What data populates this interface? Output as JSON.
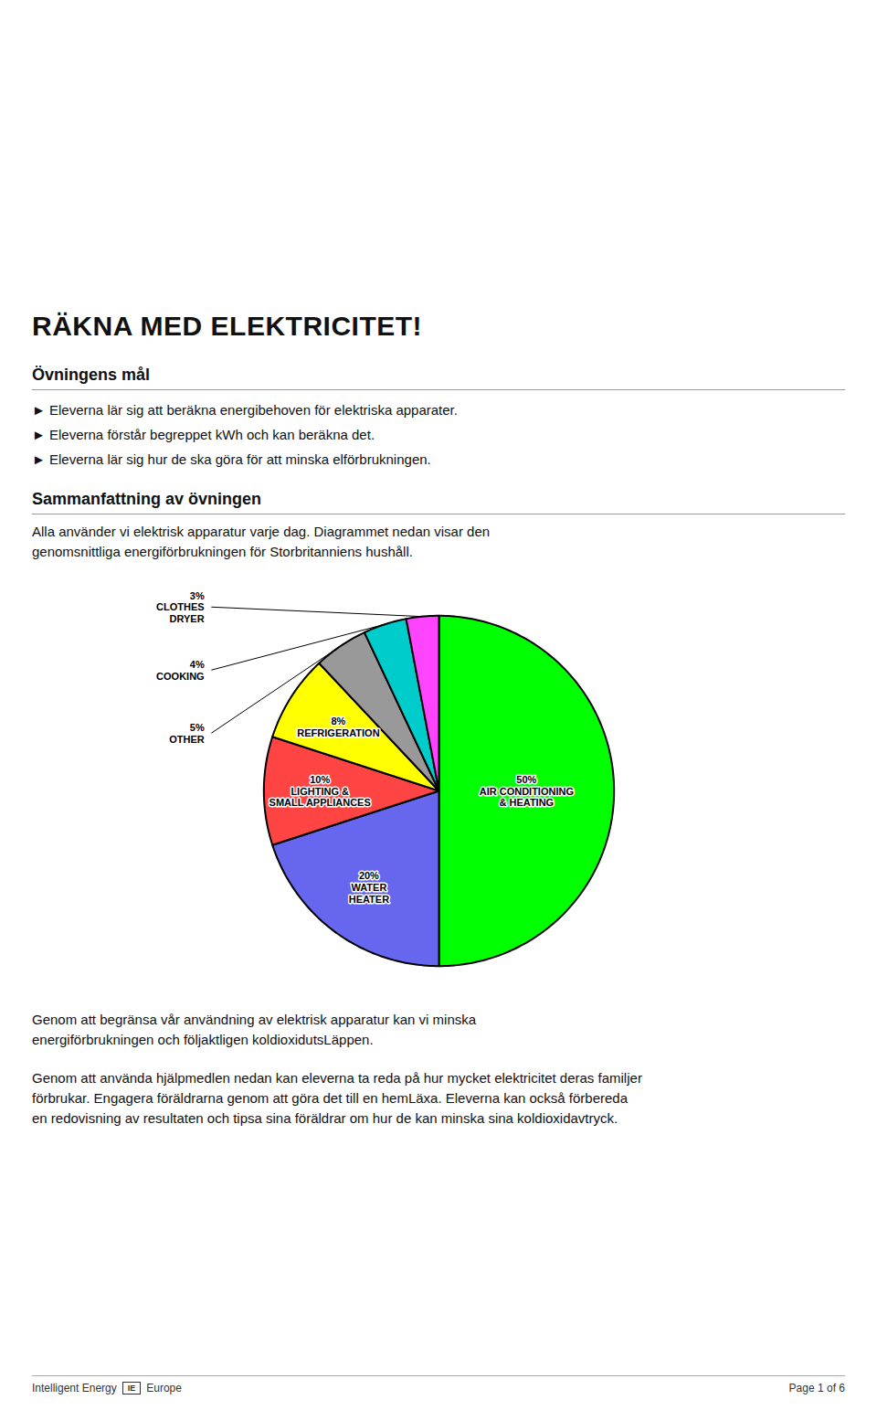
{
  "chart_data": {
    "type": "pie",
    "title": "RÄKNA MED ELEKTRICITET!",
    "categories": [
      "AIR CONDITIONING\n& HEATING",
      "WATER\nHEATER",
      "LIGHTING &\nSMALL APPLIANCES",
      "REFRIGERATION",
      "OTHER",
      "COOKING",
      "CLOTHES\nDRYER"
    ],
    "values": [
      50,
      20,
      10,
      8,
      5,
      4,
      3
    ],
    "value_labels": [
      "50%",
      "20%",
      "10%",
      "8%",
      "5%",
      "4%",
      "3%"
    ],
    "colors": [
      "#00ff00",
      "#6666ee",
      "#ff4444",
      "#ffff00",
      "#999999",
      "#00cccc",
      "#ff44ff"
    ],
    "data_labels": true,
    "annotations": [
      "Övningens mål",
      "► Eleverna lär sig att beräkna energibehoven för elektriska apparater.",
      "► Eleverna förstår begreppet kWh och kan beräkna det.",
      "► Eleverna lär sig hur de ska göra för att minska elförbrukningen.",
      "Sammanfattning av övningen",
      "Alla använder vi elektrisk apparatur varje dag. Diagrammet nedan visar den",
      "genomsnittliga energiförbrukningen för Storbritanniens hushåll.",
      "Genom att begränsa vår användning av elektrisk apparatur kan vi minska",
      "energiförbrukningen och följaktligen koldioxidutsLäppen.",
      "Genom att använda hjälpmedlen nedan kan eleverna ta reda på hur mycket elektricitet deras familjer",
      "förbrukar. Engagera föräldrarna genom att göra det till en hemLäxa. Eleverna kan också förbereda",
      "en redovisning av resultaten och tipsa sina föräldrar om hur de kan minska sina koldioxidavtryck.",
      "Intelligent Energy",
      "IE",
      "Europe",
      "Page 1 of 6"
    ]
  }
}
